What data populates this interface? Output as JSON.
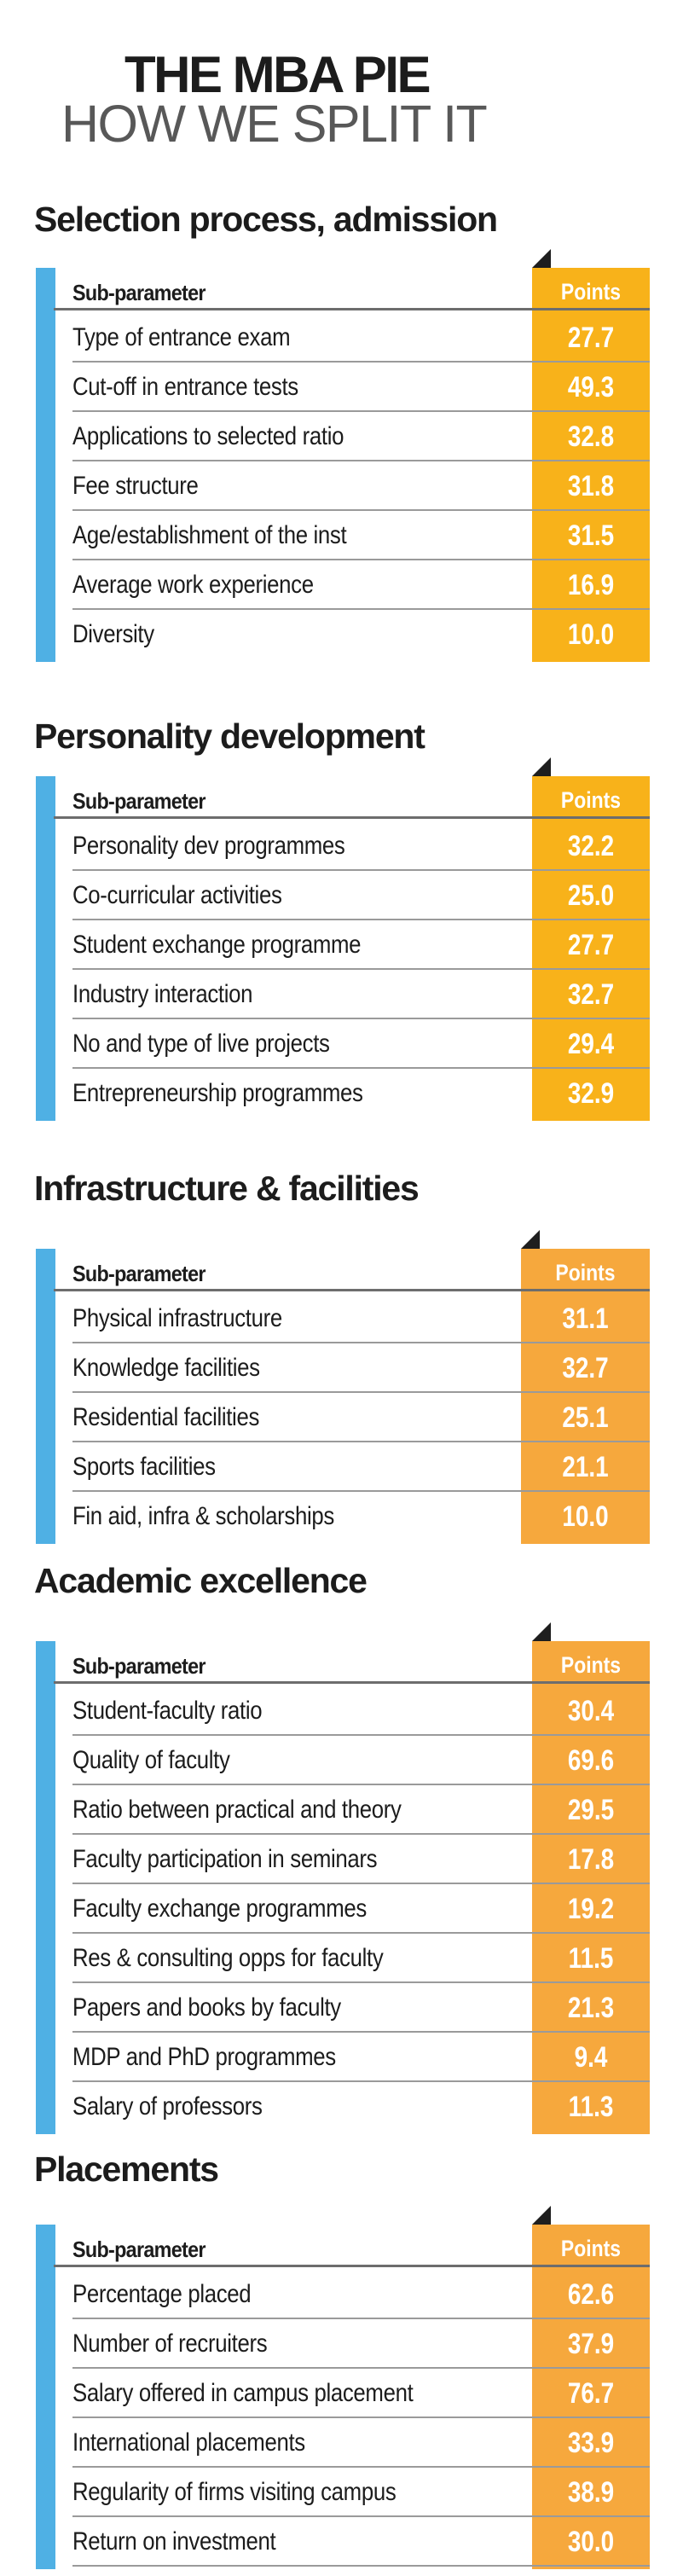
{
  "header": {
    "title": "THE MBA PIE",
    "subtitle": "HOW WE SPLIT IT"
  },
  "colors": {
    "accent_blue": "#4fb0e4",
    "points_yellow": "#f8b21a",
    "points_orange": "#f6a83d",
    "text_dark": "#1c1c1c",
    "subtitle_gray": "#585858"
  },
  "column_headers": {
    "sub_parameter": "Sub-parameter",
    "points": "Points"
  },
  "sections": [
    {
      "title": "Selection process, admission",
      "rows": [
        {
          "label": "Type of entrance exam",
          "points": "27.7"
        },
        {
          "label": "Cut-off in entrance tests",
          "points": "49.3"
        },
        {
          "label": "Applications to selected ratio",
          "points": "32.8"
        },
        {
          "label": "Fee structure",
          "points": "31.8"
        },
        {
          "label": "Age/establishment of the inst",
          "points": "31.5"
        },
        {
          "label": "Average work experience",
          "points": "16.9"
        },
        {
          "label": "Diversity",
          "points": "10.0"
        }
      ]
    },
    {
      "title": "Personality development",
      "rows": [
        {
          "label": "Personality dev programmes",
          "points": "32.2"
        },
        {
          "label": "Co-curricular activities",
          "points": "25.0"
        },
        {
          "label": "Student exchange programme",
          "points": "27.7"
        },
        {
          "label": "Industry interaction",
          "points": "32.7"
        },
        {
          "label": "No and type of live projects",
          "points": "29.4"
        },
        {
          "label": "Entrepreneurship programmes",
          "points": "32.9"
        }
      ]
    },
    {
      "title": "Infrastructure & facilities",
      "rows": [
        {
          "label": "Physical infrastructure",
          "points": "31.1"
        },
        {
          "label": "Knowledge facilities",
          "points": "32.7"
        },
        {
          "label": "Residential facilities",
          "points": "25.1"
        },
        {
          "label": "Sports facilities",
          "points": "21.1"
        },
        {
          "label": "Fin aid, infra & scholarships",
          "points": "10.0"
        }
      ]
    },
    {
      "title": "Academic excellence",
      "rows": [
        {
          "label": "Student-faculty ratio",
          "points": "30.4"
        },
        {
          "label": "Quality of faculty",
          "points": "69.6"
        },
        {
          "label": "Ratio between practical and theory",
          "points": "29.5"
        },
        {
          "label": "Faculty participation in seminars",
          "points": "17.8"
        },
        {
          "label": "Faculty exchange programmes",
          "points": "19.2"
        },
        {
          "label": "Res & consulting opps for faculty",
          "points": "11.5"
        },
        {
          "label": "Papers and books by faculty",
          "points": "21.3"
        },
        {
          "label": "MDP and PhD programmes",
          "points": "9.4"
        },
        {
          "label": "Salary of professors",
          "points": "11.3"
        }
      ]
    },
    {
      "title": "Placements",
      "rows": [
        {
          "label": "Percentage placed",
          "points": "62.6"
        },
        {
          "label": "Number of recruiters",
          "points": "37.9"
        },
        {
          "label": "Salary offered in campus placement",
          "points": "76.7"
        },
        {
          "label": "International placements",
          "points": "33.9"
        },
        {
          "label": "Regularity of firms visiting campus",
          "points": "38.9"
        },
        {
          "label": "Return on investment",
          "points": "30.0"
        }
      ]
    }
  ]
}
